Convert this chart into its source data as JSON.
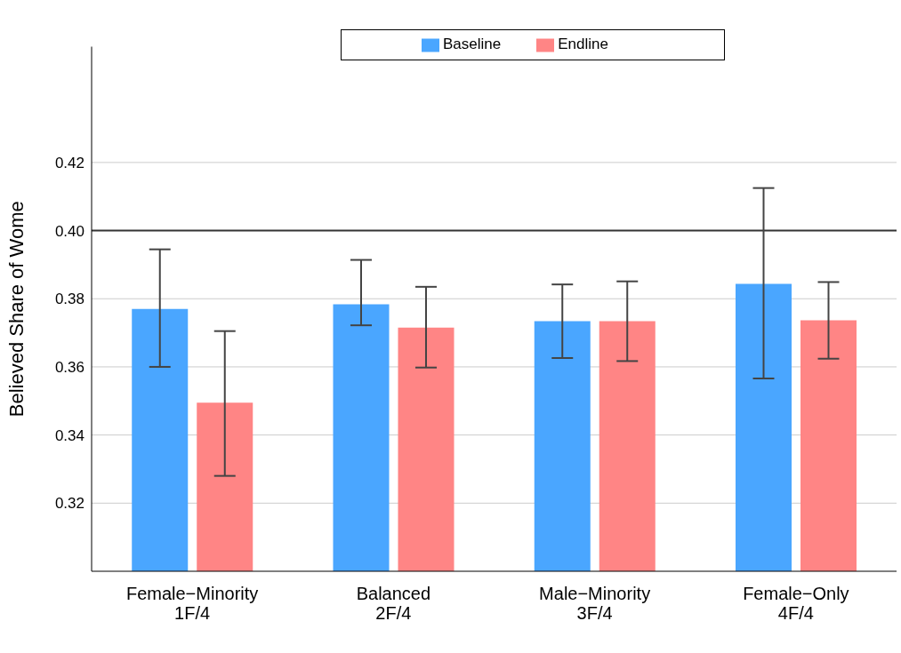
{
  "chart_data": {
    "type": "bar",
    "ylabel": "Believed Share of Wome",
    "categories": [
      "Female−Minority\n1F/4",
      "Balanced\n2F/4",
      "Male−Minority\n3F/4",
      "Female−Only\n4F/4"
    ],
    "series": [
      {
        "name": "Baseline",
        "color": "#4aa6ff",
        "values": [
          0.377,
          0.3784,
          0.3734,
          0.3844
        ],
        "errors": [
          [
            0.36,
            0.3945
          ],
          [
            0.3722,
            0.3914
          ],
          [
            0.3626,
            0.3842
          ],
          [
            0.3566,
            0.4125
          ]
        ]
      },
      {
        "name": "Endline",
        "color": "#ff8585",
        "values": [
          0.3495,
          0.3715,
          0.3734,
          0.3737
        ],
        "errors": [
          [
            0.328,
            0.3705
          ],
          [
            0.3598,
            0.3835
          ],
          [
            0.3617,
            0.3851
          ],
          [
            0.3624,
            0.3849
          ]
        ]
      }
    ],
    "ylim": [
      0.3,
      0.454
    ],
    "yticks": [
      {
        "value": 0.32,
        "label": "0.32"
      },
      {
        "value": 0.34,
        "label": "0.34"
      },
      {
        "value": 0.36,
        "label": "0.36"
      },
      {
        "value": 0.38,
        "label": "0.38"
      },
      {
        "value": 0.4,
        "label": "0.40"
      },
      {
        "value": 0.42,
        "label": "0.42"
      }
    ],
    "grid": "y",
    "legend": "top",
    "ref_lines": [
      {
        "axis": "y",
        "value": 0.4,
        "color": "#333333"
      }
    ]
  }
}
